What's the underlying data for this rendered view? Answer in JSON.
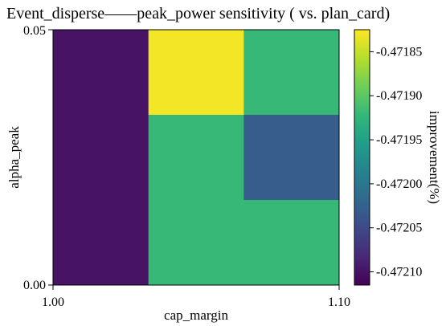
{
  "chart_data": {
    "type": "heatmap",
    "title": "Event_disperse——peak_power sensitivity ( vs. plan_card)",
    "xlabel": "cap_margin",
    "ylabel": "alpha_peak",
    "x_tick_labels": [
      "1.00",
      "1.10"
    ],
    "y_tick_labels": [
      "0.00",
      "0.05"
    ],
    "colorbar_label": "improvement(%)",
    "colorbar_ticks": [
      "-0.47185",
      "-0.47190",
      "-0.47195",
      "-0.47200",
      "-0.47205",
      "-0.47210"
    ],
    "colorbar_tick_values": [
      -0.47185,
      -0.4719,
      -0.47195,
      -0.472,
      -0.47205,
      -0.4721
    ],
    "color_range": [
      -0.472115,
      -0.471825
    ],
    "colormap": [
      "#440154",
      "#482878",
      "#3e4989",
      "#31688e",
      "#26828e",
      "#1f9e89",
      "#35b779",
      "#6ece58",
      "#b5de2b",
      "#fde725"
    ],
    "n_cols": 3,
    "n_rows": 3,
    "cells": [
      [
        -0.4721,
        -0.47183,
        -0.47192
      ],
      [
        -0.4721,
        -0.47192,
        -0.47203
      ],
      [
        -0.4721,
        -0.47192,
        -0.47192
      ]
    ]
  }
}
